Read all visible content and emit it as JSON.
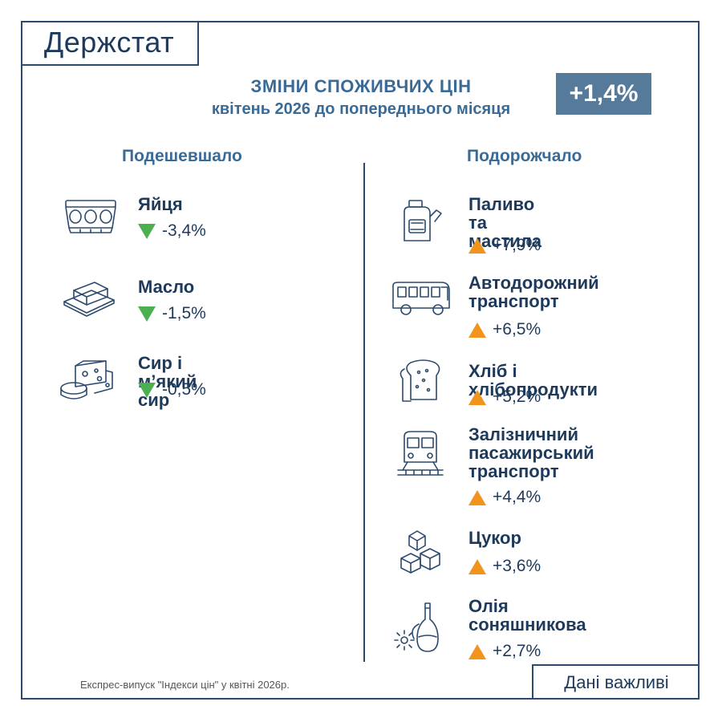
{
  "header": {
    "logo": "Держстат",
    "title_line1": "ЗМІНИ СПОЖИВЧИХ ЦІН",
    "title_line2": "квітень 2026 до попереднього місяця",
    "total_change": "+1,4%"
  },
  "left": {
    "heading": "Подешевшало",
    "items": [
      {
        "label": "Яйця",
        "change": "-3,4%",
        "icon": "egg-carton-icon"
      },
      {
        "label": "Масло",
        "change": "-1,5%",
        "icon": "butter-icon"
      },
      {
        "label": "Сир і м’який сир",
        "change": "-0,5%",
        "icon": "cheese-icon"
      }
    ]
  },
  "right": {
    "heading": "Подорожчало",
    "items": [
      {
        "label_lines": [
          "Паливо та",
          "мастила"
        ],
        "change": "+7,9%",
        "icon": "fuel-canister-icon"
      },
      {
        "label_lines": [
          "Автодорожний",
          "транспорт"
        ],
        "change": "+6,5%",
        "icon": "bus-icon"
      },
      {
        "label_lines": [
          "Хліб і хлібопродукти"
        ],
        "change": "+5,2%",
        "icon": "bread-icon"
      },
      {
        "label_lines": [
          "Залізничний",
          "пасажирський",
          "транспорт"
        ],
        "change": "+4,4%",
        "icon": "train-icon"
      },
      {
        "label_lines": [
          "Цукор"
        ],
        "change": "+3,6%",
        "icon": "sugar-cubes-icon"
      },
      {
        "label_lines": [
          "Олія",
          "соняшникова"
        ],
        "change": "+2,7%",
        "icon": "oil-bottle-icon"
      }
    ]
  },
  "colors": {
    "down": "#4caf50",
    "up": "#f0941e",
    "accent": "#567a9a",
    "text": "#1d3a5c"
  },
  "footer": {
    "note": "Експрес-випуск \"Індекси цін\" у квітні 2026р.",
    "box_label": "Дані важливі"
  }
}
